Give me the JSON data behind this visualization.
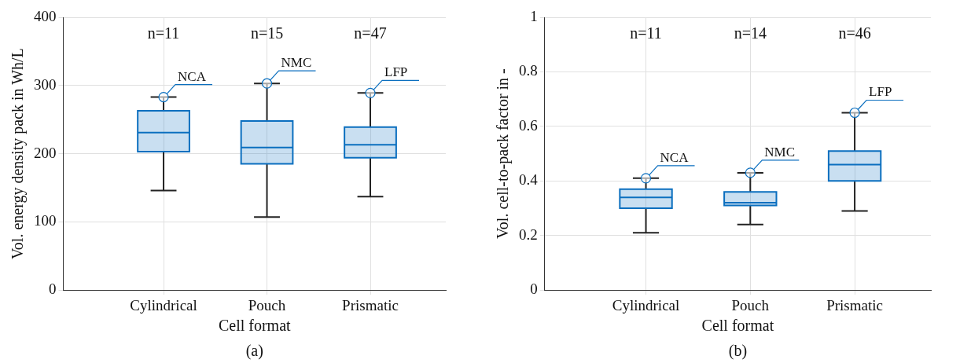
{
  "chart_data": [
    {
      "type": "box",
      "categories": [
        "Cylindrical",
        "Pouch",
        "Prismatic"
      ],
      "xlabel": "Cell format",
      "ylabel": "Vol. energy density pack in Wh/L",
      "ylim": [
        0,
        400
      ],
      "yticks": [
        0,
        100,
        200,
        300,
        400
      ],
      "grid": true,
      "color": "#0b6fbf",
      "boxes": [
        {
          "low": 146,
          "q1": 203,
          "median": 231,
          "q3": 263,
          "high": 283
        },
        {
          "low": 107,
          "q1": 185,
          "median": 209,
          "q3": 248,
          "high": 303
        },
        {
          "low": 137,
          "q1": 194,
          "median": 213,
          "q3": 239,
          "high": 289
        }
      ],
      "annotations": [
        "n=11",
        "n=15",
        "n=47",
        {
          "text": "NCA",
          "x": "Cylindrical",
          "y": 283
        },
        {
          "text": "NMC",
          "x": "Pouch",
          "y": 303
        },
        {
          "text": "LFP",
          "x": "Prismatic",
          "y": 289
        },
        "(a)"
      ]
    },
    {
      "type": "box",
      "categories": [
        "Cylindrical",
        "Pouch",
        "Prismatic"
      ],
      "xlabel": "Cell format",
      "ylabel": "Vol. cell-to-pack factor in -",
      "ylim": [
        0,
        1
      ],
      "yticks": [
        0,
        0.2,
        0.4,
        0.6,
        0.8,
        1
      ],
      "grid": true,
      "color": "#0b6fbf",
      "boxes": [
        {
          "low": 0.21,
          "q1": 0.3,
          "median": 0.34,
          "q3": 0.37,
          "high": 0.41
        },
        {
          "low": 0.24,
          "q1": 0.31,
          "median": 0.32,
          "q3": 0.36,
          "high": 0.43
        },
        {
          "low": 0.29,
          "q1": 0.4,
          "median": 0.46,
          "q3": 0.51,
          "high": 0.65
        }
      ],
      "annotations": [
        "n=11",
        "n=14",
        "n=46",
        {
          "text": "NCA",
          "x": "Cylindrical",
          "y": 0.41
        },
        {
          "text": "NMC",
          "x": "Pouch",
          "y": 0.43
        },
        {
          "text": "LFP",
          "x": "Prismatic",
          "y": 0.65
        },
        "(b)"
      ]
    }
  ]
}
